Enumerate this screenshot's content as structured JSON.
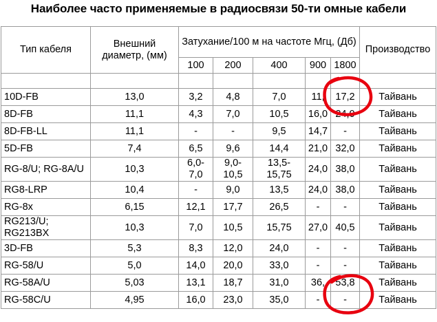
{
  "title": "Наиболее часто применяемые в радиосвязи 50-ти омные кабели",
  "table": {
    "headers": {
      "type": "Тип кабеля",
      "diameter": "Внешний диаметр, (мм)",
      "attenuation": "Затухание/100 м на частоте Мгц, (Дб)",
      "production": "Производство",
      "frequencies": [
        "100",
        "200",
        "400",
        "900",
        "1800"
      ]
    },
    "rows": [
      {
        "type": "10D-FB",
        "diameter": "13,0",
        "f100": "3,2",
        "f200": "4,8",
        "f400": "7,0",
        "f900": "11,",
        "f1800": "17,2",
        "production": "Тайвань"
      },
      {
        "type": "8D-FB",
        "diameter": "11,1",
        "f100": "4,3",
        "f200": "7,0",
        "f400": "10,5",
        "f900": "16,0",
        "f1800": "24,0",
        "production": "Тайвань"
      },
      {
        "type": "8D-FB-LL",
        "diameter": "11,1",
        "f100": "-",
        "f200": "-",
        "f400": "9,5",
        "f900": "14,7",
        "f1800": "-",
        "production": "Тайвань"
      },
      {
        "type": "5D-FB",
        "diameter": "7,4",
        "f100": "6,5",
        "f200": "9,6",
        "f400": "14,4",
        "f900": "21,0",
        "f1800": "32,0",
        "production": "Тайвань"
      },
      {
        "type": "RG-8/U; RG-8A/U",
        "diameter": "10,3",
        "f100": "6,0-7,0",
        "f200": "9,0-10,5",
        "f400": "13,5-15,75",
        "f900": "24,0",
        "f1800": "38,0",
        "production": "Тайвань"
      },
      {
        "type": "RG8-LRP",
        "diameter": "10,4",
        "f100": "-",
        "f200": "9,0",
        "f400": "13,5",
        "f900": "24,0",
        "f1800": "38,0",
        "production": "Тайвань"
      },
      {
        "type": "RG-8x",
        "diameter": "6,15",
        "f100": "12,1",
        "f200": "17,7",
        "f400": "26,5",
        "f900": "-",
        "f1800": "-",
        "production": "Тайвань"
      },
      {
        "type": "RG213/U; RG213BX",
        "diameter": "10,3",
        "f100": "7,0",
        "f200": "10,5",
        "f400": "15,75",
        "f900": "27,0",
        "f1800": "40,5",
        "production": "Тайвань"
      },
      {
        "type": "3D-FB",
        "diameter": "5,3",
        "f100": "8,3",
        "f200": "12,0",
        "f400": "24,0",
        "f900": "-",
        "f1800": "-",
        "production": "Тайвань"
      },
      {
        "type": "RG-58/U",
        "diameter": "5,0",
        "f100": "14,0",
        "f200": "20,0",
        "f400": "33,0",
        "f900": "-",
        "f1800": "-",
        "production": "Тайвань"
      },
      {
        "type": "RG-58A/U",
        "diameter": "5,03",
        "f100": "13,1",
        "f200": "18,7",
        "f400": "31,0",
        "f900": "36,",
        "f1800": "53,8",
        "production": "Тайвань"
      },
      {
        "type": "RG-58C/U",
        "diameter": "4,95",
        "f100": "16,0",
        "f200": "23,0",
        "f400": "35,0",
        "f900": "-",
        "f1800": "-",
        "production": "Тайвань"
      }
    ]
  },
  "colors": {
    "annotation": "#e8000f",
    "grid": "#9a9a9a"
  }
}
